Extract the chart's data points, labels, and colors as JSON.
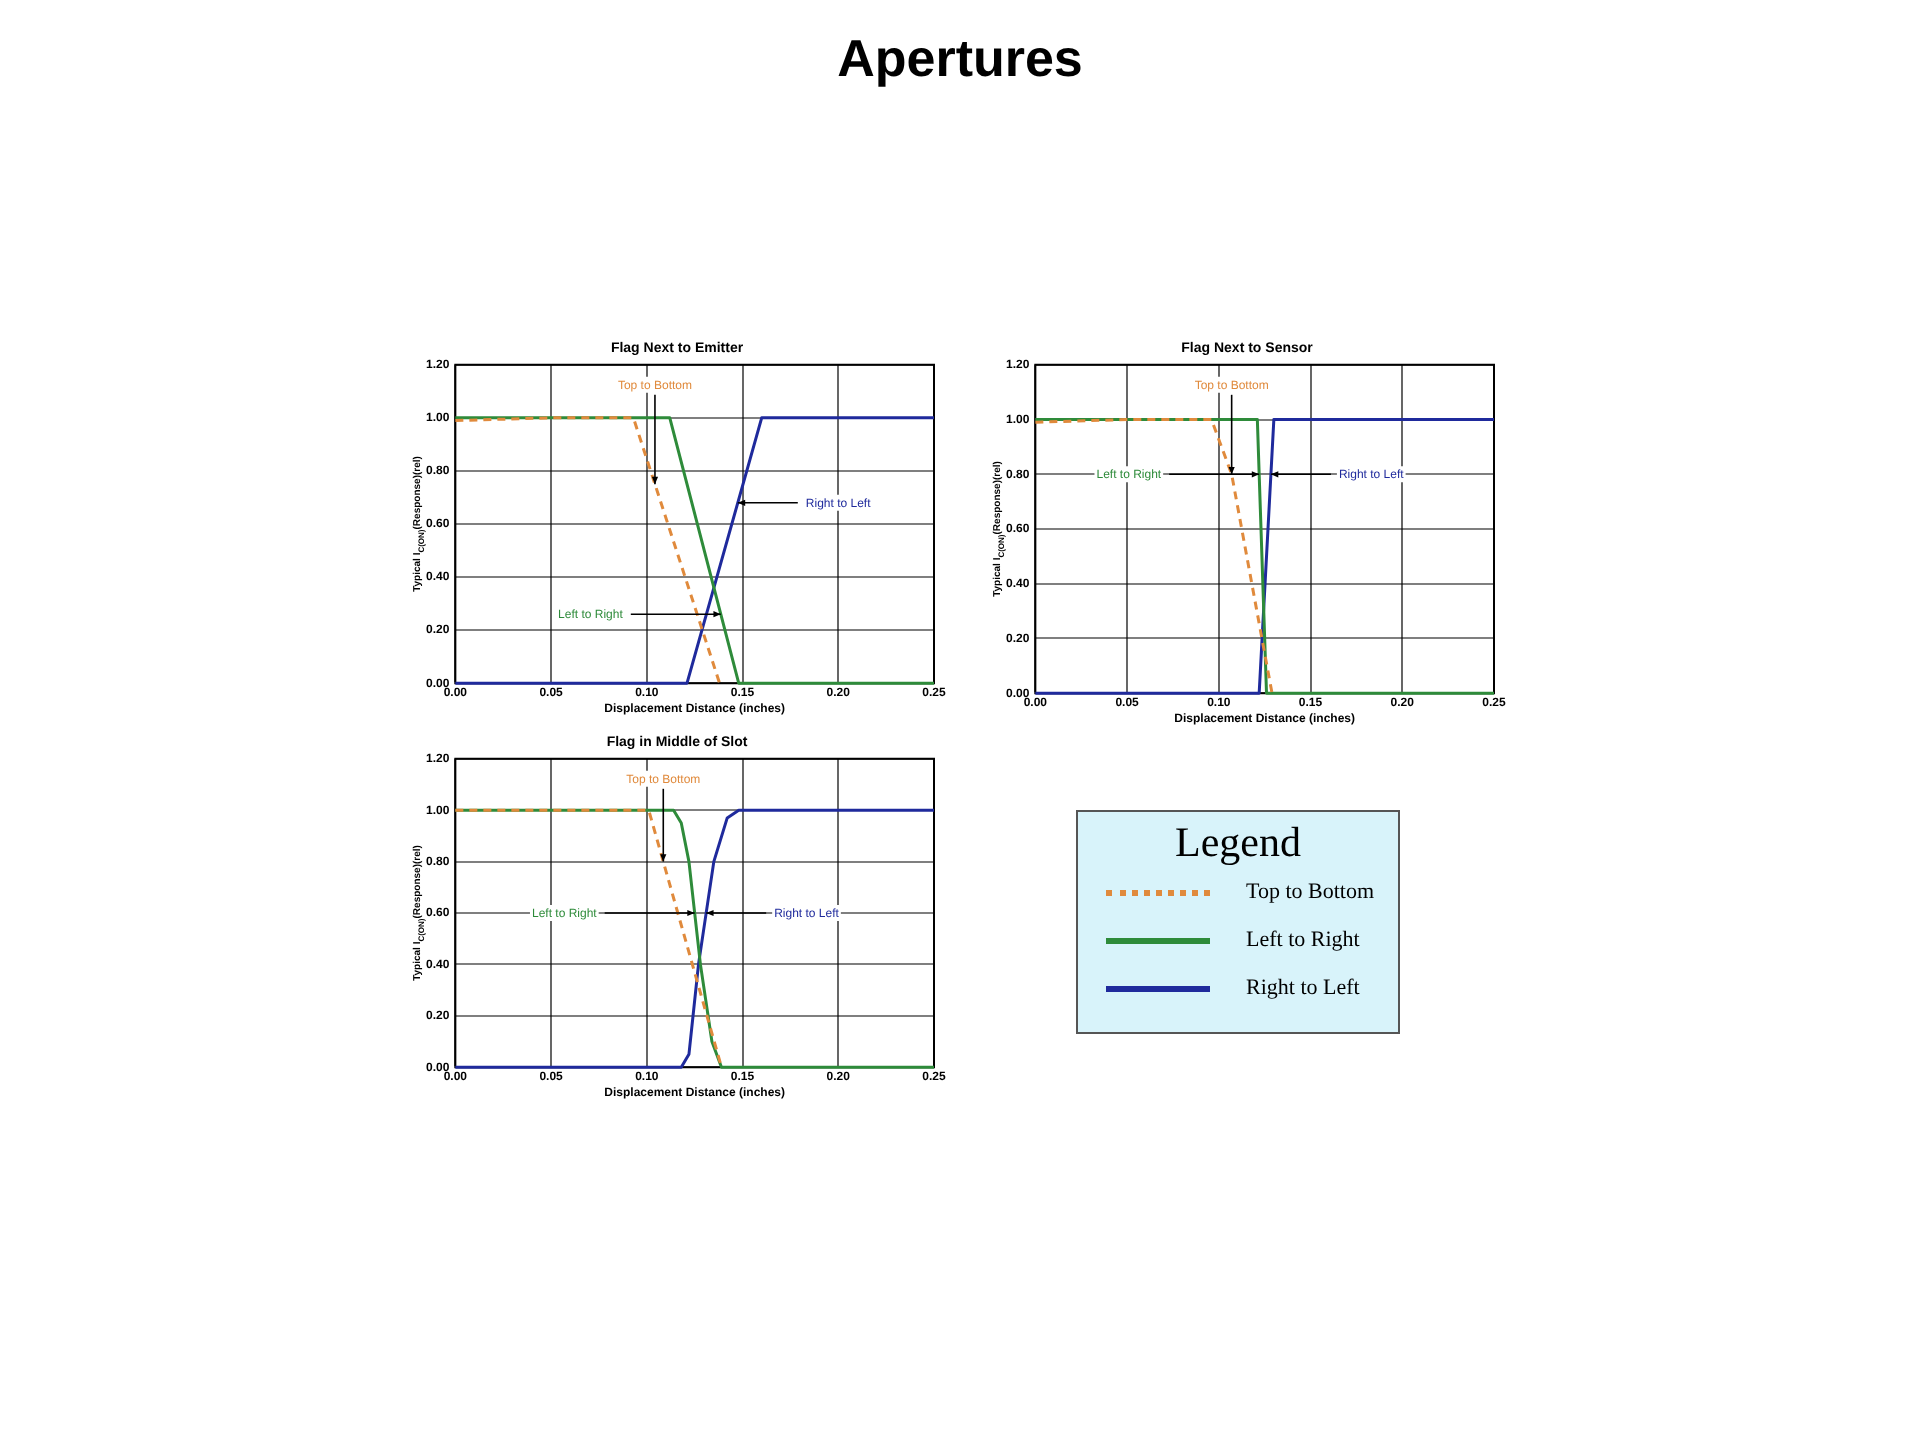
{
  "chart_data": [
    {
      "type": "other",
      "title": "Apertures"
    },
    {
      "type": "line",
      "title": "Flag Next to Emitter",
      "xlabel": "Displacement Distance (inches)",
      "ylabel": "Typical I$_{C(ON)}$(Response)(rel)",
      "xlim": [
        0,
        0.25
      ],
      "ylim": [
        0,
        1.2
      ],
      "xticks": [
        {
          "value": 0,
          "label": "0.00"
        },
        {
          "value": 0.05,
          "label": "0.05"
        },
        {
          "value": 0.1,
          "label": "0.10"
        },
        {
          "value": 0.15,
          "label": "0.15"
        },
        {
          "value": 0.2,
          "label": "0.20"
        },
        {
          "value": 0.25,
          "label": "0.25"
        }
      ],
      "yticks": [
        {
          "value": 0,
          "label": "0.00"
        },
        {
          "value": 0.2,
          "label": "0.20"
        },
        {
          "value": 0.4,
          "label": "0.40"
        },
        {
          "value": 0.6,
          "label": "0.60"
        },
        {
          "value": 0.8,
          "label": "0.80"
        },
        {
          "value": 1,
          "label": "1.00"
        },
        {
          "value": 1.2,
          "label": "1.20"
        }
      ],
      "grid": true,
      "legend": false,
      "marker": "none",
      "series": [
        {
          "name": "Top to Bottom",
          "color": "#e08a3c",
          "line_style": "dashed",
          "x": [
            0,
            0.05,
            0.093,
            0.138
          ],
          "values": [
            0.99,
            1.0,
            1.0,
            0
          ]
        },
        {
          "name": "Left to Right",
          "color": "#2e8b3a",
          "line_style": "solid",
          "x": [
            0,
            0.112,
            0.148,
            0.25
          ],
          "values": [
            1.0,
            1.0,
            0,
            0
          ]
        },
        {
          "name": "Right to Left",
          "color": "#1f2a9c",
          "line_style": "solid",
          "x": [
            0,
            0.121,
            0.16,
            0.25
          ],
          "values": [
            0,
            0,
            1.0,
            1.0
          ]
        }
      ]
    },
    {
      "type": "line",
      "title": "Flag Next to Sensor",
      "xlabel": "Displacement Distance (inches)",
      "ylabel": "Typical I$_{C(ON)}$(Response)(rel)",
      "xlim": [
        0,
        0.25
      ],
      "ylim": [
        0,
        1.2
      ],
      "xticks": [
        {
          "value": 0,
          "label": "0.00"
        },
        {
          "value": 0.05,
          "label": "0.05"
        },
        {
          "value": 0.1,
          "label": "0.10"
        },
        {
          "value": 0.15,
          "label": "0.15"
        },
        {
          "value": 0.2,
          "label": "0.20"
        },
        {
          "value": 0.25,
          "label": "0.25"
        }
      ],
      "yticks": [
        {
          "value": 0,
          "label": "0.00"
        },
        {
          "value": 0.2,
          "label": "0.20"
        },
        {
          "value": 0.4,
          "label": "0.40"
        },
        {
          "value": 0.6,
          "label": "0.60"
        },
        {
          "value": 0.8,
          "label": "0.80"
        },
        {
          "value": 1,
          "label": "1.00"
        },
        {
          "value": 1.2,
          "label": "1.20"
        }
      ],
      "grid": true,
      "legend": false,
      "marker": "none",
      "series": [
        {
          "name": "Top to Bottom",
          "color": "#e08a3c",
          "line_style": "dashed",
          "x": [
            0,
            0.05,
            0.096,
            0.107,
            0.129
          ],
          "values": [
            0.99,
            1.0,
            1.0,
            0.8,
            0
          ]
        },
        {
          "name": "Left to Right",
          "color": "#2e8b3a",
          "line_style": "solid",
          "x": [
            0,
            0.121,
            0.126,
            0.25
          ],
          "values": [
            1.0,
            1.0,
            0,
            0
          ]
        },
        {
          "name": "Right to Left",
          "color": "#1f2a9c",
          "line_style": "solid",
          "x": [
            0,
            0.122,
            0.13,
            0.25
          ],
          "values": [
            0,
            0,
            1.0,
            1.0
          ]
        }
      ]
    },
    {
      "type": "line",
      "title": "Flag in Middle of Slot",
      "xlabel": "Displacement Distance (inches)",
      "ylabel": "Typical I$_{C(ON)}$(Response)(rel)",
      "xlim": [
        0,
        0.25
      ],
      "ylim": [
        0,
        1.2
      ],
      "xticks": [
        {
          "value": 0,
          "label": "0.00"
        },
        {
          "value": 0.05,
          "label": "0.05"
        },
        {
          "value": 0.1,
          "label": "0.10"
        },
        {
          "value": 0.15,
          "label": "0.15"
        },
        {
          "value": 0.2,
          "label": "0.20"
        },
        {
          "value": 0.25,
          "label": "0.25"
        }
      ],
      "yticks": [
        {
          "value": 0,
          "label": "0.00"
        },
        {
          "value": 0.2,
          "label": "0.20"
        },
        {
          "value": 0.4,
          "label": "0.40"
        },
        {
          "value": 0.6,
          "label": "0.60"
        },
        {
          "value": 0.8,
          "label": "0.80"
        },
        {
          "value": 1,
          "label": "1.00"
        },
        {
          "value": 1.2,
          "label": "1.20"
        }
      ],
      "grid": true,
      "legend": false,
      "marker": "none",
      "series": [
        {
          "name": "Top to Bottom",
          "color": "#e08a3c",
          "line_style": "dashed",
          "x": [
            0,
            0.101,
            0.139
          ],
          "values": [
            1.0,
            1.0,
            0
          ]
        },
        {
          "name": "Left to Right",
          "color": "#2e8b3a",
          "line_style": "solid",
          "x": [
            0,
            0.114,
            0.118,
            0.122,
            0.128,
            0.134,
            0.139,
            0.25
          ],
          "values": [
            1.0,
            1.0,
            0.95,
            0.8,
            0.4,
            0.1,
            0,
            0
          ]
        },
        {
          "name": "Right to Left",
          "color": "#1f2a9c",
          "line_style": "solid",
          "x": [
            0,
            0.118,
            0.122,
            0.127,
            0.135,
            0.142,
            0.148,
            0.25
          ],
          "values": [
            0,
            0,
            0.05,
            0.4,
            0.8,
            0.97,
            1.0,
            1.0
          ]
        }
      ]
    },
    {
      "type": "other",
      "title": "Legend",
      "annotations": [
        "Top to Bottom",
        "Left to Right",
        "Right to Left"
      ]
    }
  ]
}
